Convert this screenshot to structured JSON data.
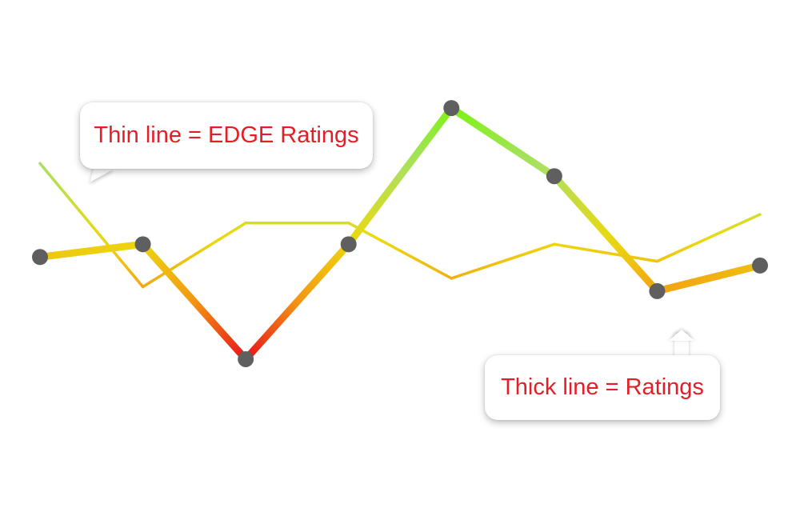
{
  "chart_data": {
    "type": "line",
    "x": [
      1,
      2,
      3,
      4,
      5,
      6,
      7,
      8
    ],
    "series": [
      {
        "name": "EDGE Ratings",
        "style": "thin",
        "values": [
          6.8,
          3.9,
          5.4,
          5.4,
          4.1,
          4.9,
          4.5,
          5.6
        ]
      },
      {
        "name": "Ratings",
        "style": "thick",
        "values": [
          4.6,
          4.9,
          2.2,
          4.9,
          8.1,
          6.5,
          3.8,
          4.4
        ],
        "markers": true,
        "marker_color": "#5f5f5f"
      }
    ],
    "ylim": [
      0,
      10
    ],
    "grid": false,
    "axes_visible": false,
    "color_scale": {
      "low": "#e8121b",
      "mid_low": "#f39a12",
      "mid": "#ecd90e",
      "mid_high": "#a9e063",
      "high": "#7ef215"
    }
  },
  "annotations": {
    "thin_label": "Thin line = EDGE Ratings",
    "thick_label": "Thick line = Ratings"
  }
}
